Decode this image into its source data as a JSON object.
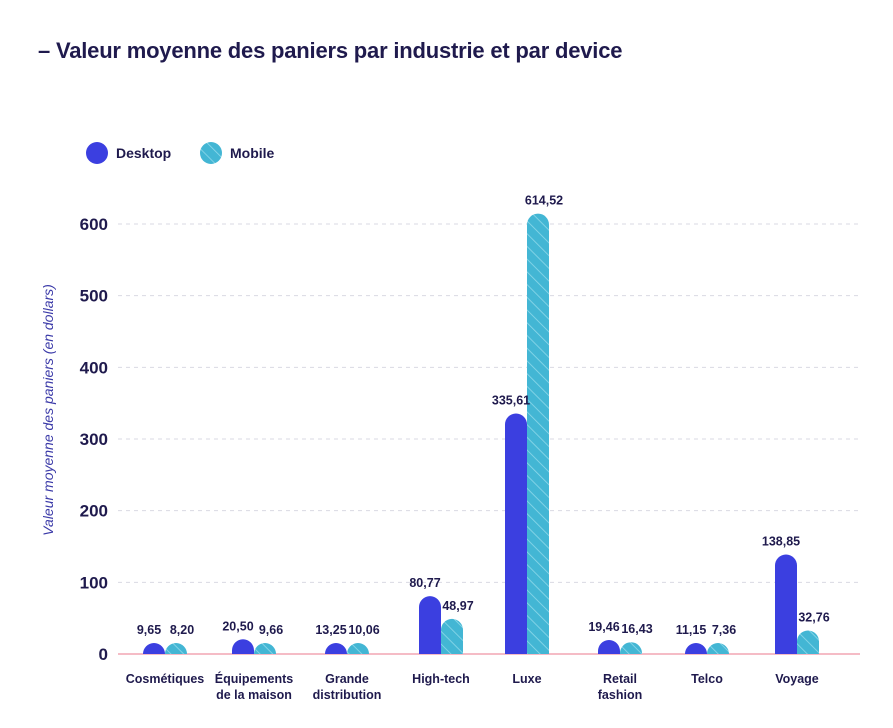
{
  "title": "– Valeur moyenne des paniers par industrie et par device",
  "colors": {
    "desktop": "#3b3fe0",
    "mobile": "#43b6d4",
    "mobile_stripe": "#8fd9ea",
    "baseline": "#f2a6b3",
    "grid": "#d9d9e3",
    "text": "#1f1a4d"
  },
  "chart_data": {
    "type": "bar",
    "ylabel": "Valeur moyenne des paniers (en dollars)",
    "xlabel": "",
    "ylim": [
      0,
      600
    ],
    "yticks": [
      0,
      100,
      200,
      300,
      400,
      500,
      600
    ],
    "grid": true,
    "legend_position": "top-left",
    "categories": [
      [
        "Cosmétiques"
      ],
      [
        "Équipements",
        "de la maison"
      ],
      [
        "Grande",
        "distribution"
      ],
      [
        "High-tech"
      ],
      [
        "Luxe"
      ],
      [
        "Retail",
        "fashion"
      ],
      [
        "Telco"
      ],
      [
        "Voyage"
      ]
    ],
    "series": [
      {
        "name": "Desktop",
        "values": [
          9.65,
          20.5,
          13.25,
          80.77,
          335.61,
          19.46,
          11.15,
          138.85
        ],
        "labels": [
          "9,65",
          "20,50",
          "13,25",
          "80,77",
          "335,61",
          "19,46",
          "11,15",
          "138,85"
        ]
      },
      {
        "name": "Mobile",
        "values": [
          8.2,
          9.66,
          10.06,
          48.97,
          614.52,
          16.43,
          7.36,
          32.76
        ],
        "labels": [
          "8,20",
          "9,66",
          "10,06",
          "48,97",
          "614,52",
          "16,43",
          "7,36",
          "32,76"
        ]
      }
    ]
  }
}
